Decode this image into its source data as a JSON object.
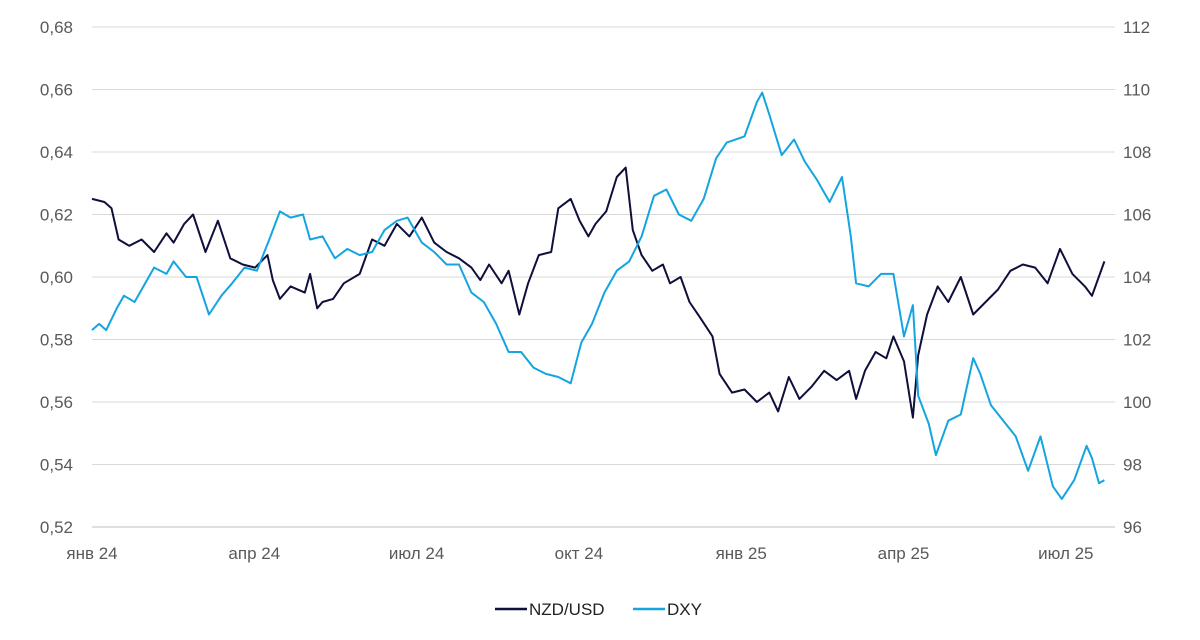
{
  "chart_data": {
    "type": "line",
    "title": "",
    "xlabel": "",
    "ylabel": "",
    "x_ticks": [
      "янв 24",
      "апр 24",
      "июл 24",
      "окт 24",
      "янв 25",
      "апр 25",
      "июл 25"
    ],
    "y_left": {
      "ticks": [
        "0,52",
        "0,54",
        "0,56",
        "0,58",
        "0,60",
        "0,62",
        "0,64",
        "0,66",
        "0,68"
      ],
      "range": [
        0.52,
        0.68
      ]
    },
    "y_right": {
      "ticks": [
        "96",
        "98",
        "100",
        "102",
        "104",
        "106",
        "108",
        "110",
        "112"
      ],
      "range": [
        96,
        112
      ]
    },
    "x_range": [
      "2024-01-01",
      "2025-07-31"
    ],
    "grid": true,
    "legend_position": "bottom",
    "series": [
      {
        "name": "NZD/USD",
        "axis": "left",
        "color": "#0f0f3c",
        "points": [
          [
            "2024-01-01",
            0.625
          ],
          [
            "2024-01-08",
            0.624
          ],
          [
            "2024-01-12",
            0.622
          ],
          [
            "2024-01-16",
            0.612
          ],
          [
            "2024-01-22",
            0.61
          ],
          [
            "2024-01-29",
            0.612
          ],
          [
            "2024-02-05",
            0.608
          ],
          [
            "2024-02-12",
            0.614
          ],
          [
            "2024-02-16",
            0.611
          ],
          [
            "2024-02-22",
            0.617
          ],
          [
            "2024-02-27",
            0.62
          ],
          [
            "2024-03-05",
            0.608
          ],
          [
            "2024-03-12",
            0.618
          ],
          [
            "2024-03-19",
            0.606
          ],
          [
            "2024-03-26",
            0.604
          ],
          [
            "2024-04-02",
            0.603
          ],
          [
            "2024-04-09",
            0.607
          ],
          [
            "2024-04-12",
            0.599
          ],
          [
            "2024-04-16",
            0.593
          ],
          [
            "2024-04-22",
            0.597
          ],
          [
            "2024-04-30",
            0.595
          ],
          [
            "2024-05-03",
            0.601
          ],
          [
            "2024-05-07",
            0.59
          ],
          [
            "2024-05-10",
            0.592
          ],
          [
            "2024-05-16",
            0.593
          ],
          [
            "2024-05-22",
            0.598
          ],
          [
            "2024-05-31",
            0.601
          ],
          [
            "2024-06-07",
            0.612
          ],
          [
            "2024-06-14",
            0.61
          ],
          [
            "2024-06-21",
            0.617
          ],
          [
            "2024-06-28",
            0.613
          ],
          [
            "2024-07-05",
            0.619
          ],
          [
            "2024-07-12",
            0.611
          ],
          [
            "2024-07-19",
            0.608
          ],
          [
            "2024-07-26",
            0.606
          ],
          [
            "2024-08-02",
            0.603
          ],
          [
            "2024-08-07",
            0.599
          ],
          [
            "2024-08-12",
            0.604
          ],
          [
            "2024-08-19",
            0.598
          ],
          [
            "2024-08-23",
            0.602
          ],
          [
            "2024-08-29",
            0.588
          ],
          [
            "2024-09-03",
            0.598
          ],
          [
            "2024-09-09",
            0.607
          ],
          [
            "2024-09-16",
            0.608
          ],
          [
            "2024-09-20",
            0.622
          ],
          [
            "2024-09-27",
            0.625
          ],
          [
            "2024-10-02",
            0.618
          ],
          [
            "2024-10-07",
            0.613
          ],
          [
            "2024-10-11",
            0.617
          ],
          [
            "2024-10-17",
            0.621
          ],
          [
            "2024-10-23",
            0.632
          ],
          [
            "2024-10-28",
            0.635
          ],
          [
            "2024-11-01",
            0.615
          ],
          [
            "2024-11-06",
            0.607
          ],
          [
            "2024-11-12",
            0.602
          ],
          [
            "2024-11-18",
            0.604
          ],
          [
            "2024-11-22",
            0.598
          ],
          [
            "2024-11-28",
            0.6
          ],
          [
            "2024-12-03",
            0.592
          ],
          [
            "2024-12-09",
            0.587
          ],
          [
            "2024-12-16",
            0.581
          ],
          [
            "2024-12-20",
            0.569
          ],
          [
            "2024-12-27",
            0.563
          ],
          [
            "2025-01-03",
            0.564
          ],
          [
            "2025-01-10",
            0.56
          ],
          [
            "2025-01-17",
            0.563
          ],
          [
            "2025-01-22",
            0.557
          ],
          [
            "2025-01-28",
            0.568
          ],
          [
            "2025-02-03",
            0.561
          ],
          [
            "2025-02-10",
            0.565
          ],
          [
            "2025-02-17",
            0.57
          ],
          [
            "2025-02-24",
            0.567
          ],
          [
            "2025-03-03",
            0.57
          ],
          [
            "2025-03-07",
            0.561
          ],
          [
            "2025-03-12",
            0.57
          ],
          [
            "2025-03-18",
            0.576
          ],
          [
            "2025-03-24",
            0.574
          ],
          [
            "2025-03-28",
            0.581
          ],
          [
            "2025-04-03",
            0.573
          ],
          [
            "2025-04-08",
            0.555
          ],
          [
            "2025-04-11",
            0.575
          ],
          [
            "2025-04-16",
            0.588
          ],
          [
            "2025-04-22",
            0.597
          ],
          [
            "2025-04-28",
            0.592
          ],
          [
            "2025-05-05",
            0.6
          ],
          [
            "2025-05-12",
            0.588
          ],
          [
            "2025-05-19",
            0.592
          ],
          [
            "2025-05-26",
            0.596
          ],
          [
            "2025-06-02",
            0.602
          ],
          [
            "2025-06-09",
            0.604
          ],
          [
            "2025-06-16",
            0.603
          ],
          [
            "2025-06-23",
            0.598
          ],
          [
            "2025-06-30",
            0.609
          ],
          [
            "2025-07-07",
            0.601
          ],
          [
            "2025-07-14",
            0.597
          ],
          [
            "2025-07-18",
            0.594
          ],
          [
            "2025-07-25",
            0.605
          ]
        ]
      },
      {
        "name": "DXY",
        "axis": "right",
        "color": "#14a5e1",
        "points": [
          [
            "2024-01-01",
            102.3
          ],
          [
            "2024-01-05",
            102.5
          ],
          [
            "2024-01-09",
            102.3
          ],
          [
            "2024-01-15",
            103.0
          ],
          [
            "2024-01-19",
            103.4
          ],
          [
            "2024-01-25",
            103.2
          ],
          [
            "2024-01-31",
            103.8
          ],
          [
            "2024-02-05",
            104.3
          ],
          [
            "2024-02-12",
            104.1
          ],
          [
            "2024-02-16",
            104.5
          ],
          [
            "2024-02-23",
            104.0
          ],
          [
            "2024-02-29",
            104.0
          ],
          [
            "2024-03-07",
            102.8
          ],
          [
            "2024-03-14",
            103.4
          ],
          [
            "2024-03-20",
            103.8
          ],
          [
            "2024-03-27",
            104.3
          ],
          [
            "2024-04-03",
            104.2
          ],
          [
            "2024-04-10",
            105.2
          ],
          [
            "2024-04-16",
            106.1
          ],
          [
            "2024-04-22",
            105.9
          ],
          [
            "2024-04-29",
            106.0
          ],
          [
            "2024-05-03",
            105.2
          ],
          [
            "2024-05-10",
            105.3
          ],
          [
            "2024-05-17",
            104.6
          ],
          [
            "2024-05-24",
            104.9
          ],
          [
            "2024-05-31",
            104.7
          ],
          [
            "2024-06-07",
            104.8
          ],
          [
            "2024-06-14",
            105.5
          ],
          [
            "2024-06-21",
            105.8
          ],
          [
            "2024-06-27",
            105.9
          ],
          [
            "2024-07-05",
            105.1
          ],
          [
            "2024-07-12",
            104.8
          ],
          [
            "2024-07-19",
            104.4
          ],
          [
            "2024-07-26",
            104.4
          ],
          [
            "2024-08-02",
            103.5
          ],
          [
            "2024-08-09",
            103.2
          ],
          [
            "2024-08-16",
            102.5
          ],
          [
            "2024-08-23",
            101.6
          ],
          [
            "2024-08-30",
            101.6
          ],
          [
            "2024-09-06",
            101.1
          ],
          [
            "2024-09-13",
            100.9
          ],
          [
            "2024-09-20",
            100.8
          ],
          [
            "2024-09-27",
            100.6
          ],
          [
            "2024-10-03",
            101.9
          ],
          [
            "2024-10-09",
            102.5
          ],
          [
            "2024-10-16",
            103.5
          ],
          [
            "2024-10-23",
            104.2
          ],
          [
            "2024-10-30",
            104.5
          ],
          [
            "2024-11-06",
            105.3
          ],
          [
            "2024-11-13",
            106.6
          ],
          [
            "2024-11-20",
            106.8
          ],
          [
            "2024-11-27",
            106.0
          ],
          [
            "2024-12-04",
            105.8
          ],
          [
            "2024-12-11",
            106.5
          ],
          [
            "2024-12-18",
            107.8
          ],
          [
            "2024-12-24",
            108.3
          ],
          [
            "2025-01-03",
            108.5
          ],
          [
            "2025-01-10",
            109.6
          ],
          [
            "2025-01-13",
            109.9
          ],
          [
            "2025-01-17",
            109.2
          ],
          [
            "2025-01-24",
            107.9
          ],
          [
            "2025-01-31",
            108.4
          ],
          [
            "2025-02-06",
            107.7
          ],
          [
            "2025-02-13",
            107.1
          ],
          [
            "2025-02-20",
            106.4
          ],
          [
            "2025-02-27",
            107.2
          ],
          [
            "2025-03-04",
            105.3
          ],
          [
            "2025-03-07",
            103.8
          ],
          [
            "2025-03-14",
            103.7
          ],
          [
            "2025-03-21",
            104.1
          ],
          [
            "2025-03-28",
            104.1
          ],
          [
            "2025-04-03",
            102.1
          ],
          [
            "2025-04-08",
            103.1
          ],
          [
            "2025-04-11",
            100.2
          ],
          [
            "2025-04-17",
            99.3
          ],
          [
            "2025-04-21",
            98.3
          ],
          [
            "2025-04-28",
            99.4
          ],
          [
            "2025-05-05",
            99.6
          ],
          [
            "2025-05-12",
            101.4
          ],
          [
            "2025-05-16",
            100.9
          ],
          [
            "2025-05-22",
            99.9
          ],
          [
            "2025-05-29",
            99.4
          ],
          [
            "2025-06-05",
            98.9
          ],
          [
            "2025-06-12",
            97.8
          ],
          [
            "2025-06-19",
            98.9
          ],
          [
            "2025-06-26",
            97.3
          ],
          [
            "2025-07-01",
            96.9
          ],
          [
            "2025-07-08",
            97.5
          ],
          [
            "2025-07-15",
            98.6
          ],
          [
            "2025-07-18",
            98.2
          ],
          [
            "2025-07-22",
            97.4
          ],
          [
            "2025-07-25",
            97.5
          ]
        ]
      }
    ]
  }
}
